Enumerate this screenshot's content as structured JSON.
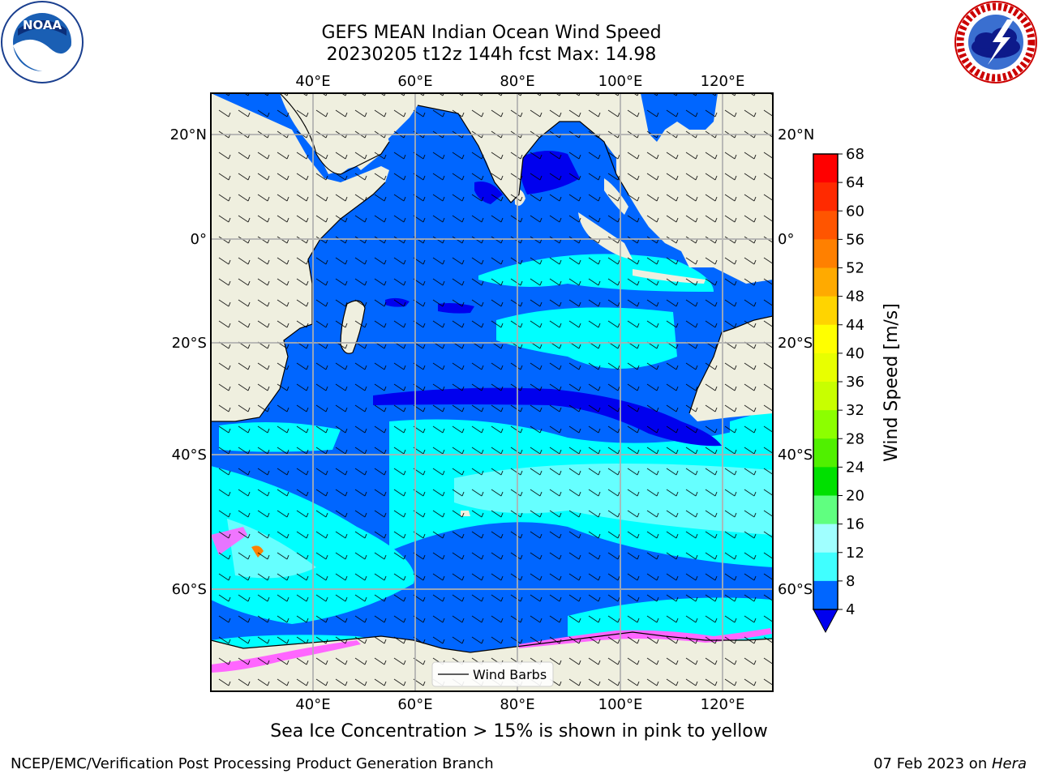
{
  "header": {
    "title_line1": "GEFS MEAN Indian Ocean Wind Speed",
    "title_line2": "20230205 t12z 144h fcst   Max: 14.98"
  },
  "logos": {
    "left": {
      "name": "noaa-logo-icon",
      "text": "NOAA",
      "ring_text": "NATIONAL OCEANIC AND ATMOSPHERIC ADMINISTRATION • U.S. DEPARTMENT OF COMMERCE"
    },
    "right": {
      "name": "nws-logo-icon",
      "text": "NATIONAL WEATHER SERVICE"
    }
  },
  "map": {
    "lon_ticks": [
      "40°E",
      "60°E",
      "80°E",
      "100°E",
      "120°E"
    ],
    "lat_ticks_left": [
      "20°N",
      "0°",
      "20°S",
      "40°S",
      "60°S"
    ],
    "lat_ticks_right": [
      "20°N",
      "0°",
      "20°S",
      "40°S",
      "60°S"
    ],
    "legend_label": "Wind Barbs",
    "colors": {
      "land": "#efefdf",
      "ocean_low": "#0066ff",
      "ocean_mid": "#00ffff",
      "calm": "#0000ee",
      "ice": "#ff66ff"
    }
  },
  "colorbar": {
    "label": "Wind Speed [m/s]",
    "ticks": [
      "68",
      "64",
      "60",
      "56",
      "52",
      "48",
      "44",
      "40",
      "36",
      "32",
      "28",
      "24",
      "20",
      "16",
      "12",
      "8",
      "4"
    ],
    "colors": [
      "#ff0000",
      "#ff2a00",
      "#ff5500",
      "#ff8000",
      "#ffaa00",
      "#ffd400",
      "#ffff00",
      "#e8ff00",
      "#c8ff00",
      "#8cff00",
      "#50f000",
      "#00e000",
      "#60ff80",
      "#a0ffff",
      "#40ffff",
      "#00ffff",
      "#0066ff"
    ],
    "extend_color": "#0000ee"
  },
  "caption": "Sea Ice Concentration > 15% is shown in pink to yellow",
  "footer": {
    "left": "NCEP/EMC/Verification Post Processing Product Generation Branch",
    "right_prefix": "07 Feb 2023 on ",
    "right_host": "Hera"
  }
}
